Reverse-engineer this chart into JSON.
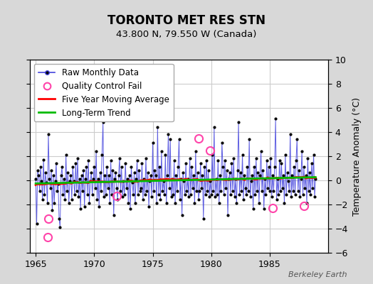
{
  "title": "TORONTO MET RES STN",
  "subtitle": "43.800 N, 79.550 W (Canada)",
  "ylabel_right": "Temperature Anomaly (°C)",
  "watermark": "Berkeley Earth",
  "xlim": [
    1964.5,
    1990.0
  ],
  "ylim": [
    -6,
    10
  ],
  "yticks": [
    -6,
    -4,
    -2,
    0,
    2,
    4,
    6,
    8,
    10
  ],
  "xticks": [
    1965,
    1970,
    1975,
    1980,
    1985
  ],
  "fig_bg_color": "#d8d8d8",
  "plot_bg_color": "#ffffff",
  "grid_color": "#cccccc",
  "raw_line_color": "#4444dd",
  "raw_marker_color": "#000000",
  "qc_fail_color": "#ff44aa",
  "moving_avg_color": "#ff0000",
  "trend_color": "#00bb00",
  "n_months": 288,
  "start_year": 1965.0,
  "legend_fontsize": 8.5,
  "title_fontsize": 12,
  "subtitle_fontsize": 9.5,
  "raw_monthly_data": [
    0.5,
    -3.2,
    1.2,
    0.8,
    -0.5,
    1.5,
    0.3,
    -1.2,
    2.1,
    -0.8,
    1.0,
    0.2,
    -1.5,
    4.2,
    0.5,
    -0.3,
    1.2,
    -2.1,
    0.8,
    -1.5,
    0.3,
    1.8,
    -0.5,
    0.1,
    -2.8,
    -3.5,
    0.8,
    1.5,
    -0.8,
    0.5,
    -1.2,
    2.5,
    -0.5,
    1.0,
    -1.5,
    0.3,
    0.8,
    -1.2,
    1.5,
    0.3,
    -0.8,
    1.8,
    -0.5,
    2.2,
    -1.0,
    0.5,
    -2.0,
    0.8,
    -0.5,
    1.2,
    -1.8,
    0.5,
    1.5,
    -0.8,
    2.0,
    -1.5,
    0.3,
    1.0,
    -0.8,
    0.5,
    1.5,
    -0.3,
    2.8,
    -1.2,
    0.5,
    -1.8,
    1.0,
    -0.5,
    2.5,
    5.2,
    -1.0,
    0.8,
    -0.8,
    1.5,
    -0.3,
    0.8,
    -1.5,
    2.0,
    -0.8,
    1.2,
    -2.5,
    0.5,
    1.0,
    -0.3,
    -1.2,
    0.8,
    2.2,
    -0.5,
    1.5,
    -1.0,
    0.3,
    -0.8,
    1.8,
    -0.3,
    0.5,
    -1.5,
    0.8,
    -2.0,
    1.5,
    0.2,
    -0.8,
    1.0,
    -1.5,
    0.5,
    2.0,
    -0.8,
    1.2,
    -0.5,
    -0.3,
    1.8,
    -1.2,
    0.5,
    -0.8,
    2.2,
    -0.5,
    1.0,
    -1.8,
    0.3,
    0.8,
    -1.0,
    3.5,
    -0.5,
    1.2,
    0.8,
    -1.5,
    4.8,
    -0.8,
    1.5,
    -1.2,
    2.8,
    -0.5,
    0.3,
    -0.8,
    2.5,
    -1.5,
    0.8,
    4.2,
    -0.3,
    3.8,
    -1.0,
    0.5,
    -0.8,
    2.0,
    -1.5,
    0.8,
    -0.5,
    1.5,
    3.8,
    -1.2,
    0.5,
    -2.5,
    1.0,
    0.3,
    -0.8,
    1.8,
    -0.5,
    0.5,
    -1.0,
    2.2,
    -0.8,
    1.5,
    -0.3,
    0.8,
    -1.5,
    2.8,
    -0.5,
    1.0,
    -1.2,
    -0.5,
    1.8,
    -0.3,
    0.8,
    -2.8,
    1.5,
    -0.8,
    2.0,
    -0.5,
    1.2,
    -1.0,
    0.3,
    -0.8,
    2.5,
    -0.5,
    4.8,
    -1.0,
    0.5,
    -0.8,
    2.0,
    -1.5,
    0.8,
    -0.5,
    3.5,
    1.5,
    -0.8,
    2.0,
    -0.3,
    1.2,
    -2.5,
    0.5,
    1.0,
    -0.8,
    1.8,
    -0.5,
    2.2,
    -1.0,
    0.5,
    -1.5,
    1.2,
    5.2,
    -0.8,
    1.0,
    -0.5,
    2.5,
    -1.2,
    0.8,
    -0.3,
    -0.8,
    1.5,
    -0.5,
    3.8,
    -1.0,
    0.3,
    0.8,
    -2.0,
    1.5,
    -0.8,
    2.2,
    -0.5,
    1.0,
    -1.5,
    0.8,
    2.8,
    -0.5,
    1.2,
    -2.0,
    0.5,
    -0.8,
    2.0,
    -0.3,
    1.5,
    -0.5,
    2.2,
    -1.0,
    0.8,
    -0.5,
    1.5,
    5.5,
    -1.2,
    0.5,
    -0.8,
    2.0,
    -0.5,
    1.8,
    -0.3,
    0.8,
    -1.5,
    2.5,
    -0.8,
    1.0,
    0.3,
    -0.5,
    4.2,
    -1.0,
    0.8,
    -0.5,
    1.5,
    -0.8,
    2.0,
    3.8,
    -0.5,
    1.2,
    -1.0,
    0.5,
    2.8,
    -0.8,
    1.5,
    -0.3,
    0.8,
    -1.5,
    2.2,
    -0.5,
    1.0,
    -0.8,
    1.8,
    -0.3,
    2.5,
    -1.0,
    0.5
  ],
  "qc_fail_indices": [
    12,
    13,
    83,
    167,
    179,
    243,
    275
  ],
  "qc_fail_values": [
    -4.7,
    -3.2,
    -1.3,
    3.5,
    2.5,
    -2.3,
    -2.1
  ]
}
